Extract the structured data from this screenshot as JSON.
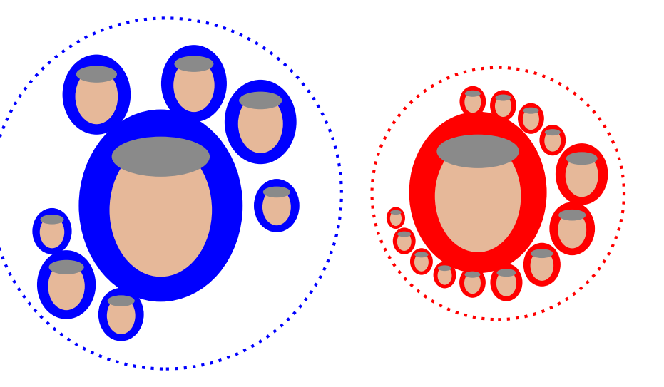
{
  "chart_data": {
    "type": "packed_bubble",
    "tick_labels": false,
    "groups": [
      {
        "color": "#0000ff",
        "sizes": [
          156,
          27,
          25,
          20,
          12,
          12,
          30,
          9
        ]
      },
      {
        "color": "#ff0000",
        "sizes": [
          110,
          16,
          6,
          8,
          12,
          3,
          3,
          4,
          4,
          4,
          3,
          4,
          4,
          2
        ]
      }
    ]
  }
}
